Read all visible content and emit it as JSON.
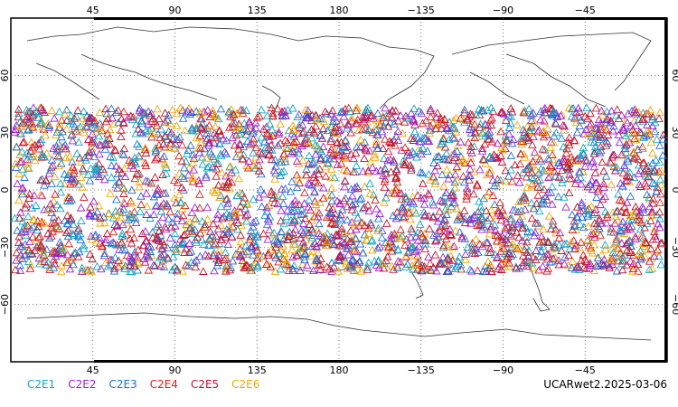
{
  "map": {
    "projection": "cylindrical equidistant, centered on 180",
    "lon_ticks_top": [
      "45",
      "90",
      "135",
      "180",
      "−135",
      "−90",
      "−45"
    ],
    "lon_ticks_bottom": [
      "45",
      "90",
      "135",
      "180",
      "−135",
      "−90",
      "−45"
    ],
    "lat_ticks_left": [
      "60",
      "30",
      "0",
      "−30",
      "−60"
    ],
    "lat_ticks_right": [
      "60",
      "30",
      "0",
      "−30",
      "−60"
    ],
    "grid": "dotted",
    "lat_range": [
      -90,
      90
    ],
    "lon_range": [
      0,
      360
    ]
  },
  "legend": {
    "items": [
      {
        "label": "C2E1",
        "color": "#0fa6c4"
      },
      {
        "label": "C2E2",
        "color": "#9a1fd6"
      },
      {
        "label": "C2E3",
        "color": "#1e6fd8"
      },
      {
        "label": "C2E4",
        "color": "#d11f1f"
      },
      {
        "label": "C2E5",
        "color": "#c0102a"
      },
      {
        "label": "C2E6",
        "color": "#f2a800"
      }
    ]
  },
  "stamp": "UCARwet2.2025-03-06",
  "chart_data": {
    "type": "scatter",
    "marker": "triangle",
    "xlabel": "",
    "ylabel": "",
    "xlim": [
      0,
      360
    ],
    "ylim": [
      -90,
      90
    ],
    "observation_band_lat": [
      -45,
      45
    ],
    "series": [
      {
        "name": "C2E1"
      },
      {
        "name": "C2E2"
      },
      {
        "name": "C2E3"
      },
      {
        "name": "C2E4"
      },
      {
        "name": "C2E5"
      },
      {
        "name": "C2E6"
      }
    ]
  }
}
